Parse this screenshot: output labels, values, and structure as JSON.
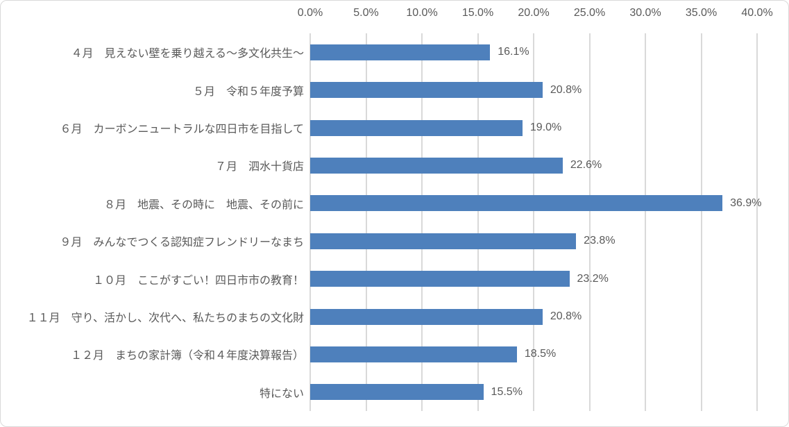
{
  "chart_data": {
    "type": "bar",
    "orientation": "horizontal",
    "title": "",
    "xlabel": "",
    "ylabel": "",
    "xlim": [
      0,
      40
    ],
    "tick_step": 5,
    "grid": true,
    "legend": false,
    "x_ticks": [
      "0.0%",
      "5.0%",
      "10.0%",
      "15.0%",
      "20.0%",
      "25.0%",
      "30.0%",
      "35.0%",
      "40.0%"
    ],
    "categories": [
      "４月　見えない壁を乗り越える～多文化共生～",
      "５月　令和５年度予算",
      "６月　カーボンニュートラルな四日市を目指して",
      "７月　泗水十貨店",
      "８月　地震、その時に　地震、その前に",
      "９月　みんなでつくる認知症フレンドリーなまち",
      "１０月　ここがすごい！四日市市の教育！",
      "１１月　守り、活かし、次代へ、私たちのまちの文化財",
      "１２月　まちの家計簿（令和４年度決算報告）",
      "特にない"
    ],
    "values": [
      16.1,
      20.8,
      19.0,
      22.6,
      36.9,
      23.8,
      23.2,
      20.8,
      18.5,
      15.5
    ],
    "value_labels": [
      "16.1%",
      "20.8%",
      "19.0%",
      "22.6%",
      "36.9%",
      "23.8%",
      "23.2%",
      "20.8%",
      "18.5%",
      "15.5%"
    ],
    "colors": {
      "bar": "#4E80BC",
      "gridline": "#D9D9D9",
      "text": "#595959",
      "frame_border": "#D9D9D9",
      "background": "#FFFFFF"
    }
  }
}
